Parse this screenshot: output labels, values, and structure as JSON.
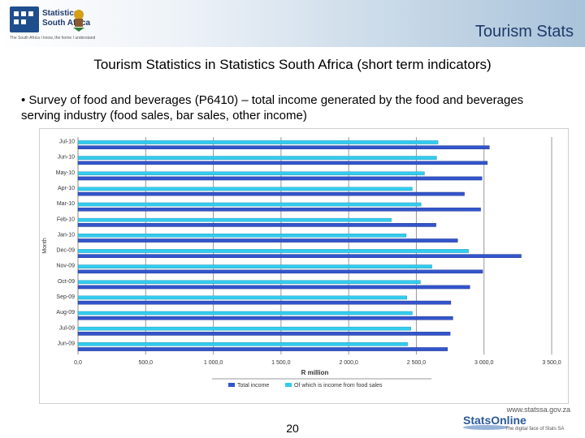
{
  "header": {
    "logo_line1": "Statistics",
    "logo_line2": "South Africa",
    "logo_tagline": "The South Africa I know, the home I understand",
    "title": "Tourism Stats"
  },
  "slide": {
    "title": "Tourism Statistics in Statistics South Africa (short term indicators)",
    "bullet": "• Survey of food and beverages (P6410) – total income generated by the food and beverages serving industry (food sales, bar sales, other income)",
    "page_number": "20"
  },
  "footer": {
    "url": "www.statssa.gov.za",
    "brand": "StatsOnline",
    "tagline": "The digital face of Stats SA"
  },
  "colors": {
    "total_income": "#3355cc",
    "food_income": "#33ccee"
  },
  "chart_data": {
    "type": "bar",
    "orientation": "horizontal",
    "ylabel": "Month",
    "xlabel": "R million",
    "xlim": [
      0,
      3500
    ],
    "xticks": [
      "0,0",
      "500,0",
      "1 000,0",
      "1 500,0",
      "2 000,0",
      "2 500,0",
      "3 000,0",
      "3 500,0"
    ],
    "categories": [
      "Jul-10",
      "Jun-10",
      "May-10",
      "Apr-10",
      "Mar-10",
      "Feb-10",
      "Jan-10",
      "Dec-09",
      "Nov-09",
      "Oct-09",
      "Sep-09",
      "Aug-09",
      "Jul-09",
      "Jun-09"
    ],
    "series": [
      {
        "name": "Total income",
        "values": [
          3040,
          3025,
          2985,
          2855,
          2975,
          2645,
          2805,
          3275,
          2990,
          2895,
          2755,
          2770,
          2750,
          2730
        ]
      },
      {
        "name": "Of which is income from food sales",
        "values": [
          2660,
          2650,
          2560,
          2470,
          2535,
          2315,
          2425,
          2885,
          2615,
          2530,
          2430,
          2470,
          2460,
          2435
        ]
      }
    ],
    "grid": true,
    "legend": "bottom"
  }
}
